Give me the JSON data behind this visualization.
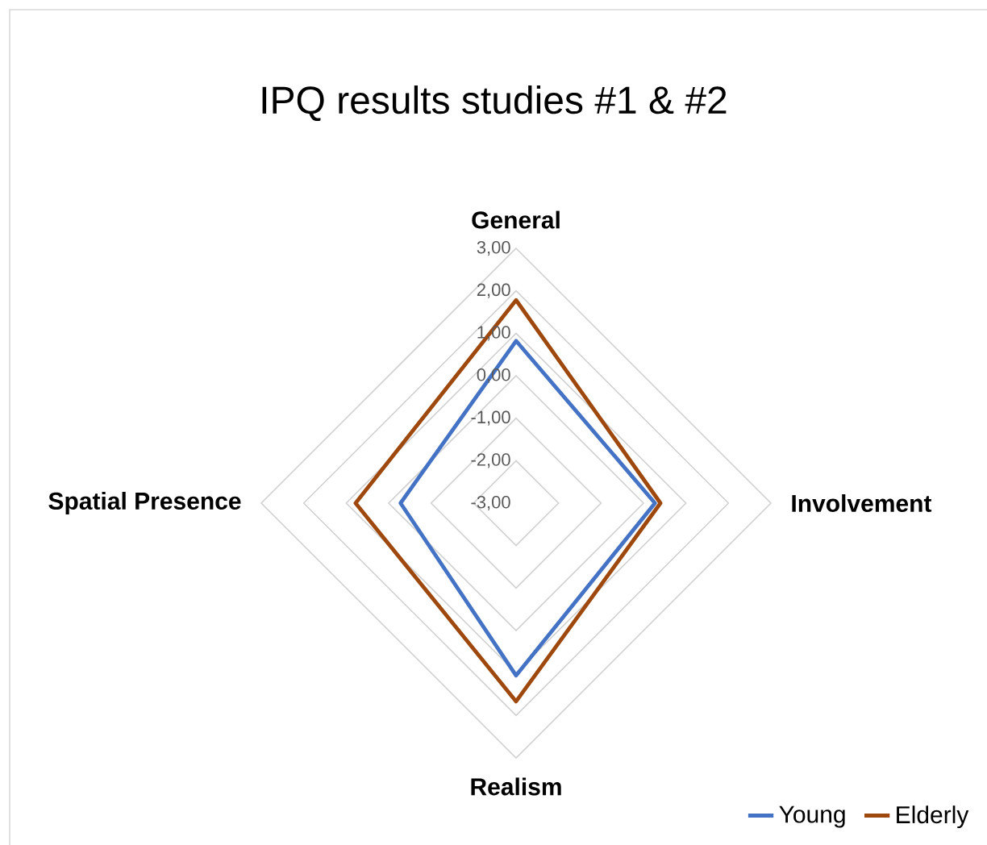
{
  "chart_data": {
    "type": "radar",
    "title": "IPQ results studies #1 & #2",
    "categories": [
      "General",
      "Involvement",
      "Realism",
      "Spatial Presence"
    ],
    "series": [
      {
        "name": "Young",
        "color": "#4472c4",
        "values": [
          0.82,
          0.27,
          1.06,
          -0.28
        ]
      },
      {
        "name": "Elderly",
        "color": "#9e480e",
        "values": [
          1.78,
          0.4,
          1.67,
          0.78
        ]
      }
    ],
    "ylim": [
      -3,
      3
    ],
    "yticks": [
      {
        "value": -3,
        "label": "-3,00"
      },
      {
        "value": -2,
        "label": "-2,00"
      },
      {
        "value": -1,
        "label": "-1,00"
      },
      {
        "value": 0,
        "label": "0,00"
      },
      {
        "value": 1,
        "label": "1,00"
      },
      {
        "value": 2,
        "label": "2,00"
      },
      {
        "value": 3,
        "label": "3,00"
      }
    ],
    "grid": true,
    "legend": "bottom right",
    "marker": "none",
    "line_style": "solid"
  }
}
